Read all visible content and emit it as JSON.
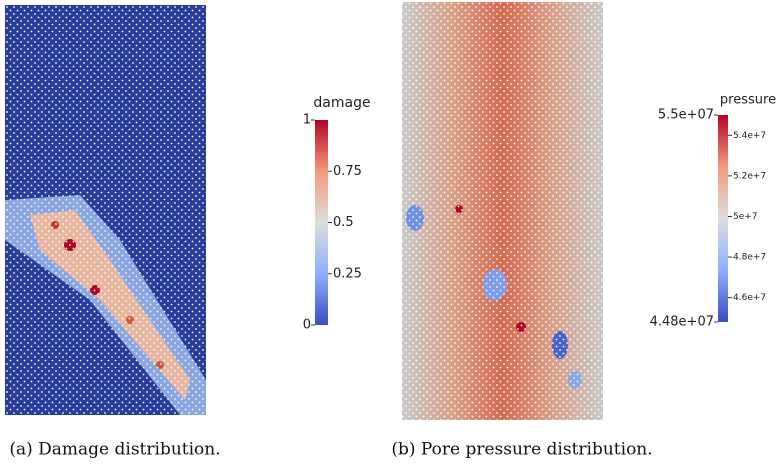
{
  "figures": [
    {
      "caption": "(a) Damage distribution.",
      "colorbar": {
        "title": "damage",
        "lim": [
          0,
          1
        ],
        "ticks": [
          0,
          0.25,
          0.5,
          0.75,
          1
        ]
      }
    },
    {
      "caption": "(b) Pore pressure distribution.",
      "colorbar": {
        "title": "pressure",
        "lim": [
          44800000,
          55000000
        ],
        "ticks": [
          {
            "value": 44800000,
            "label": "4.48e+07"
          },
          {
            "value": 46000000,
            "label": "4.6e+7"
          },
          {
            "value": 48000000,
            "label": "4.8e+7"
          },
          {
            "value": 50000000,
            "label": "5e+7"
          },
          {
            "value": 52000000,
            "label": "5.2e+7"
          },
          {
            "value": 54000000,
            "label": "5.4e+7"
          },
          {
            "value": 55000000,
            "label": "5.5e+07"
          }
        ]
      }
    }
  ]
}
